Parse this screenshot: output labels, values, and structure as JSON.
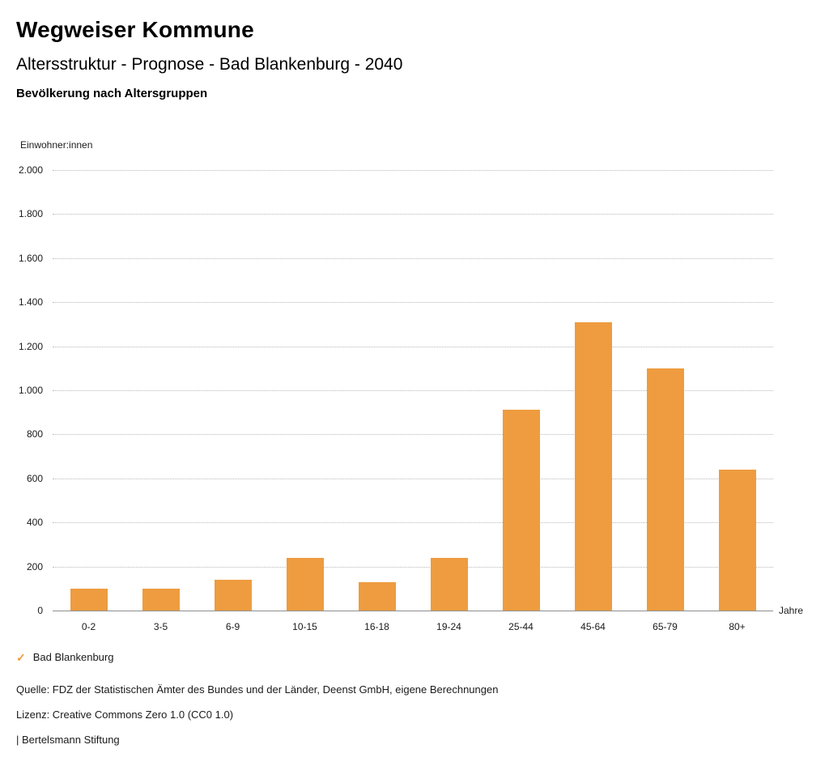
{
  "header": {
    "title": "Wegweiser Kommune",
    "subtitle": "Altersstruktur - Prognose - Bad Blankenburg - 2040",
    "chart_heading": "Bevölkerung nach Altersgruppen"
  },
  "chart_data": {
    "type": "bar",
    "title": "Bevölkerung nach Altersgruppen",
    "categories": [
      "0-2",
      "3-5",
      "6-9",
      "10-15",
      "16-18",
      "19-24",
      "25-44",
      "45-64",
      "65-79",
      "80+"
    ],
    "values": [
      100,
      100,
      140,
      240,
      130,
      240,
      910,
      1310,
      1100,
      640
    ],
    "xlabel": "Jahre",
    "ylabel": "Einwohner:innen",
    "ylim": [
      0,
      2000
    ],
    "ytick_step": 200,
    "ytick_labels": [
      "0",
      "200",
      "400",
      "600",
      "800",
      "1.000",
      "1.200",
      "1.400",
      "1.600",
      "1.800",
      "2.000"
    ],
    "grid": true,
    "bar_color": "#EE9C3F",
    "legend": {
      "position": "bottom-left",
      "items": [
        {
          "label": "Bad Blankenburg",
          "color": "#EE9C3F"
        }
      ]
    }
  },
  "icons": {
    "legend_check": "✓"
  },
  "footer": {
    "source": "Quelle: FDZ der Statistischen Ämter des Bundes und der Länder, Deenst GmbH, eigene Berechnungen",
    "license": "Lizenz: Creative Commons Zero 1.0 (CC0 1.0)",
    "attribution": "| Bertelsmann Stiftung"
  }
}
